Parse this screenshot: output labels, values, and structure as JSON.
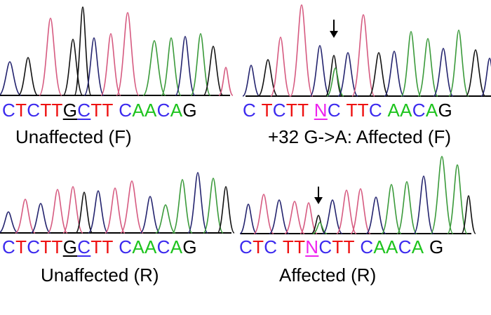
{
  "colors": {
    "A": "#1ec41e",
    "C": "#3c2aee",
    "G": "#000000",
    "T": "#ee1111",
    "N": "#ee22ee",
    "trace_C": "#23236e",
    "trace_G": "#111111",
    "trace_T": "#d65a80",
    "trace_A": "#3a9a3a"
  },
  "panels": [
    {
      "id": "top-left",
      "caption": "Unaffected (F)",
      "arrow": false,
      "sequence": [
        {
          "t": "C"
        },
        {
          "t": "T"
        },
        {
          "t": "C"
        },
        {
          "t": "T"
        },
        {
          "t": "T"
        },
        {
          "t": "G",
          "ul": true
        },
        {
          "t": "C",
          "ul": true
        },
        {
          "t": "T"
        },
        {
          "t": "T"
        },
        {
          "t": " "
        },
        {
          "t": "C"
        },
        {
          "t": "A"
        },
        {
          "t": "A"
        },
        {
          "t": "C"
        },
        {
          "t": "A"
        },
        {
          "t": "G"
        }
      ]
    },
    {
      "id": "top-right",
      "caption": "+32 G->A: Affected (F)",
      "arrow": true,
      "sequence": [
        {
          "t": "C"
        },
        {
          "t": " "
        },
        {
          "t": "T"
        },
        {
          "t": "C"
        },
        {
          "t": "T"
        },
        {
          "t": "T"
        },
        {
          "t": " "
        },
        {
          "t": "N",
          "ul": true
        },
        {
          "t": "C"
        },
        {
          "t": " "
        },
        {
          "t": "T"
        },
        {
          "t": "T"
        },
        {
          "t": "C"
        },
        {
          "t": " "
        },
        {
          "t": "A"
        },
        {
          "t": "A"
        },
        {
          "t": "C"
        },
        {
          "t": "A"
        },
        {
          "t": "G"
        }
      ]
    },
    {
      "id": "bottom-left",
      "caption": "Unaffected (R)",
      "arrow": false,
      "sequence": [
        {
          "t": "C"
        },
        {
          "t": "T"
        },
        {
          "t": "C"
        },
        {
          "t": "T"
        },
        {
          "t": "T"
        },
        {
          "t": "G",
          "ul": true
        },
        {
          "t": "C",
          "ul": true
        },
        {
          "t": "T"
        },
        {
          "t": "T"
        },
        {
          "t": " "
        },
        {
          "t": "C"
        },
        {
          "t": "A"
        },
        {
          "t": "A"
        },
        {
          "t": "C"
        },
        {
          "t": "A"
        },
        {
          "t": "G"
        }
      ]
    },
    {
      "id": "bottom-right",
      "caption": "Affected (R)",
      "arrow": true,
      "sequence": [
        {
          "t": "C"
        },
        {
          "t": "T"
        },
        {
          "t": "C"
        },
        {
          "t": " "
        },
        {
          "t": "T"
        },
        {
          "t": "T"
        },
        {
          "t": "N",
          "ul": true
        },
        {
          "t": "C"
        },
        {
          "t": "T"
        },
        {
          "t": "T"
        },
        {
          "t": " "
        },
        {
          "t": "C"
        },
        {
          "t": "A"
        },
        {
          "t": "A"
        },
        {
          "t": "C"
        },
        {
          "t": "A"
        },
        {
          "t": " "
        },
        {
          "t": "G"
        }
      ]
    }
  ]
}
